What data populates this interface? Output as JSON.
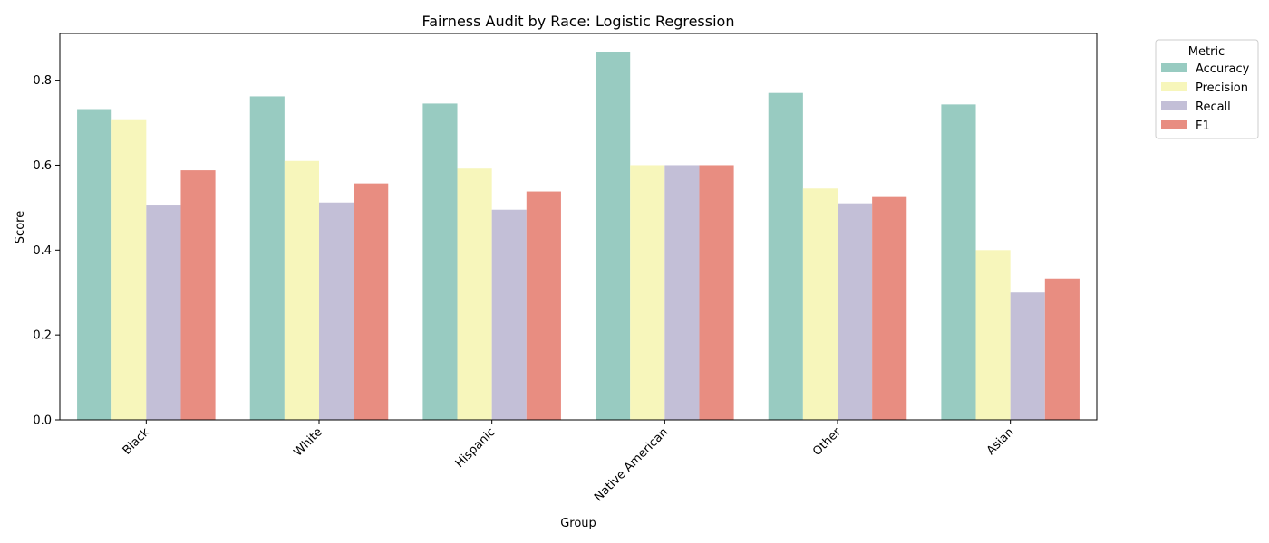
{
  "chart_data": {
    "type": "bar",
    "title": "Fairness Audit by Race: Logistic Regression",
    "xlabel": "Group",
    "ylabel": "Score",
    "ylim": [
      0,
      0.91
    ],
    "yticks": [
      "0.0",
      "0.2",
      "0.4",
      "0.6",
      "0.8"
    ],
    "yticks_values": [
      0,
      0.2,
      0.4,
      0.6,
      0.8
    ],
    "categories": [
      "Black",
      "White",
      "Hispanic",
      "Native American",
      "Other",
      "Asian"
    ],
    "series": [
      {
        "name": "Accuracy",
        "color": "#98cbc1",
        "values": [
          0.732,
          0.762,
          0.745,
          0.867,
          0.77,
          0.743
        ]
      },
      {
        "name": "Precision",
        "color": "#f7f6bb",
        "values": [
          0.706,
          0.61,
          0.592,
          0.6,
          0.545,
          0.4
        ]
      },
      {
        "name": "Recall",
        "color": "#c3bfd7",
        "values": [
          0.505,
          0.512,
          0.495,
          0.6,
          0.51,
          0.3
        ]
      },
      {
        "name": "F1",
        "color": "#e88d81",
        "values": [
          0.588,
          0.557,
          0.538,
          0.6,
          0.525,
          0.333
        ]
      }
    ],
    "legend": {
      "title": "Metric",
      "placement": "outside-top-right"
    },
    "grid": false
  }
}
